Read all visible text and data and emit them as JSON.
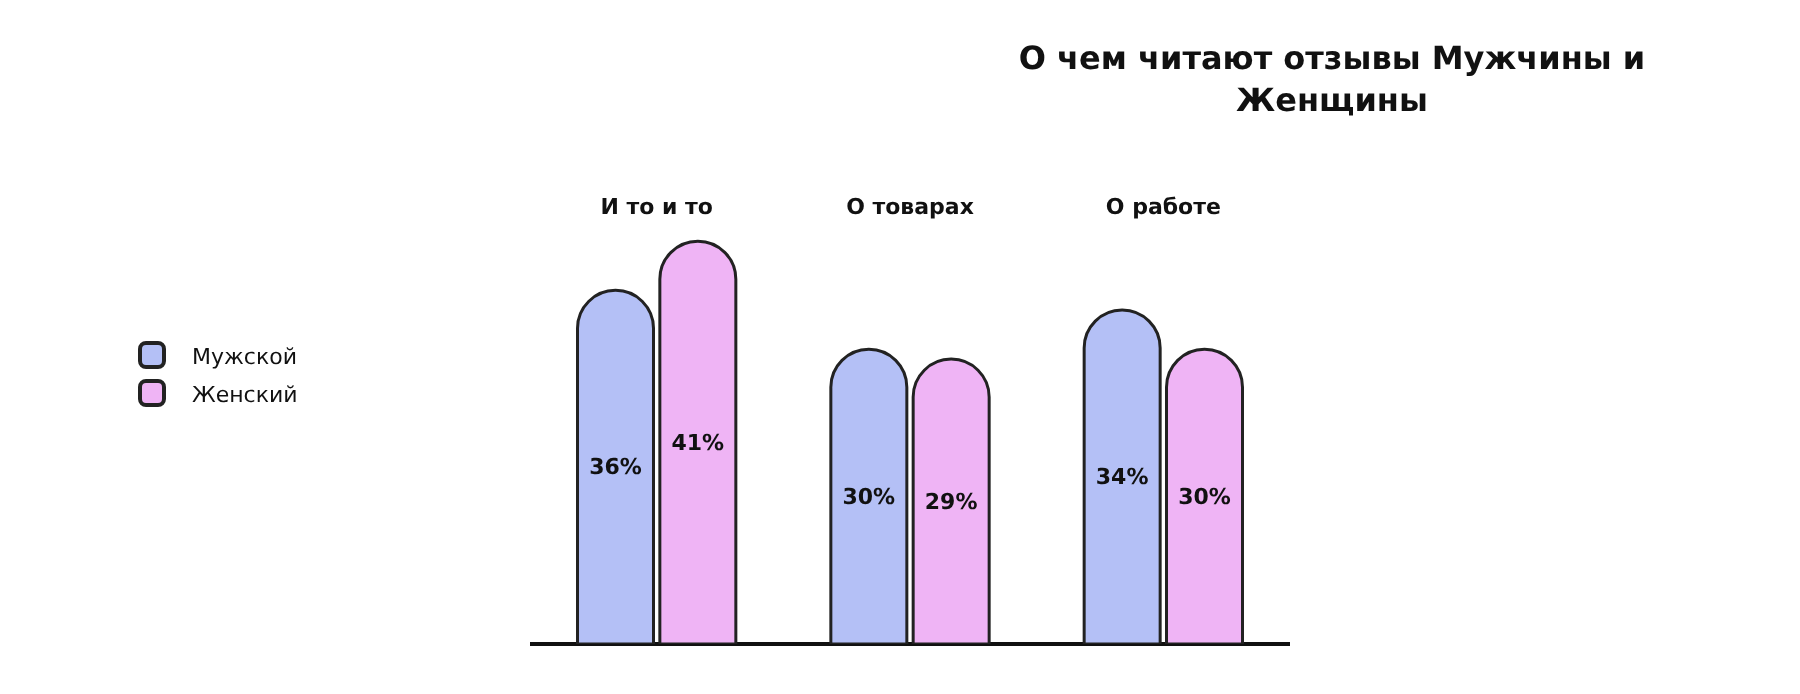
{
  "chart_data": {
    "type": "bar",
    "title": "О чем читают отзывы Мужчины и Женщины",
    "categories": [
      "И то и то",
      "О товарах",
      "О работе"
    ],
    "series": [
      {
        "name": "Мужской",
        "color": "#b4c0f6",
        "values": [
          36,
          30,
          34
        ],
        "value_labels": [
          "36%",
          "30%",
          "34%"
        ]
      },
      {
        "name": "Женский",
        "color": "#efb4f5",
        "values": [
          41,
          29,
          30
        ],
        "value_labels": [
          "41%",
          "29%",
          "30%"
        ]
      }
    ],
    "legend": "left"
  }
}
